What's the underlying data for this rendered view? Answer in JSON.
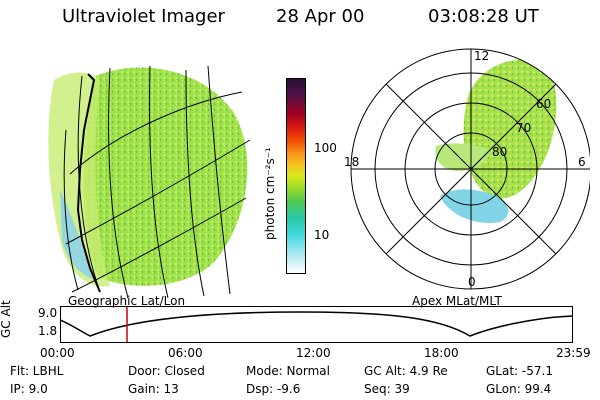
{
  "header": {
    "instrument": "Ultraviolet Imager",
    "date": "28 Apr 00",
    "time": "03:08:28 UT"
  },
  "left_panel": {
    "caption": "Geographic Lat/Lon"
  },
  "colorbar": {
    "label": "photon cm⁻²s⁻¹",
    "ticks": [
      "100",
      "10"
    ]
  },
  "polar_panel": {
    "caption": "Apex MLat/MLT",
    "mlt_labels": {
      "top": "12",
      "left": "18",
      "right": "6",
      "bottom": "0"
    },
    "lat_labels": [
      "60",
      "70",
      "80"
    ]
  },
  "altitude_plot": {
    "ylabel": "GC Alt",
    "yticks": [
      "9.0",
      "1.8"
    ],
    "xticks": [
      "00:00",
      "06:00",
      "12:00",
      "18:00",
      "23:59"
    ],
    "current_time_marker": "03:08"
  },
  "info": {
    "flt": "Flt: LBHL",
    "ip": "IP:  9.0",
    "door": "Door: Closed",
    "gain": "Gain: 13",
    "mode": "Mode: Normal",
    "dsp": "Dsp:    -9.6",
    "gc_alt": "GC Alt: 4.9 Re",
    "seq": "Seq: 39",
    "glat": "GLat:  -57.1",
    "glon": "GLon:  99.4"
  },
  "colors": {
    "background": "#ffffff",
    "marker": "#cc0000"
  }
}
